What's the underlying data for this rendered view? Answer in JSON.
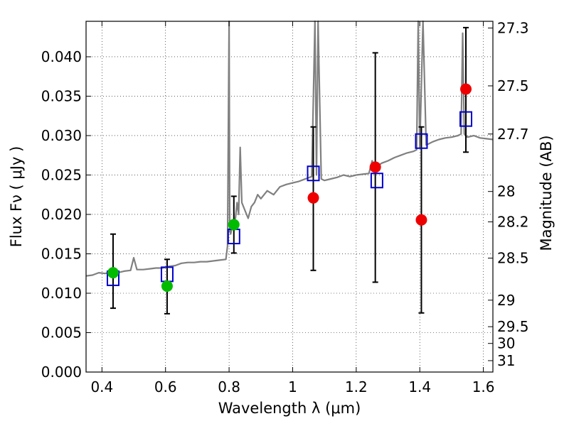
{
  "chart_data": {
    "type": "scatter",
    "xlabel": "Wavelength  λ (μm)",
    "ylabel": "Flux  Fν  ( μJy )",
    "y2label": "Magnitude (AB)",
    "xlim": [
      0.35,
      1.63
    ],
    "ylim": [
      0.0,
      0.0445
    ],
    "x_ticks": [
      0.4,
      0.6,
      0.8,
      1.0,
      1.2,
      1.4,
      1.6
    ],
    "x_tick_labels": [
      "0.4",
      "0.6",
      "0.8",
      "1",
      "1.2",
      "1.4",
      "1.6"
    ],
    "y_ticks": [
      0.0,
      0.005,
      0.01,
      0.015,
      0.02,
      0.025,
      0.03,
      0.035,
      0.04
    ],
    "y_tick_labels": [
      "0.000",
      "0.005",
      "0.010",
      "0.015",
      "0.020",
      "0.025",
      "0.030",
      "0.035",
      "0.040"
    ],
    "y2_tick_labels": [
      "27.3",
      "27.5",
      "27.7",
      "28",
      "28.2",
      "28.5",
      "29",
      "29.5",
      "30",
      "31"
    ],
    "grid": true,
    "colors": {
      "spectrum": "#808080",
      "green_points": "#00bb00",
      "red_points": "#ee0000",
      "model_squares": "#0000cc",
      "errorbars": "#000000"
    },
    "spectrum": {
      "x": [
        0.35,
        0.37,
        0.39,
        0.41,
        0.43,
        0.45,
        0.47,
        0.49,
        0.5,
        0.51,
        0.53,
        0.55,
        0.57,
        0.59,
        0.61,
        0.63,
        0.65,
        0.67,
        0.69,
        0.71,
        0.73,
        0.75,
        0.77,
        0.79,
        0.795,
        0.8,
        0.802,
        0.805,
        0.81,
        0.82,
        0.825,
        0.83,
        0.835,
        0.84,
        0.85,
        0.86,
        0.87,
        0.88,
        0.89,
        0.9,
        0.92,
        0.94,
        0.96,
        0.98,
        1.0,
        1.02,
        1.04,
        1.06,
        1.07,
        1.075,
        1.08,
        1.09,
        1.1,
        1.12,
        1.14,
        1.16,
        1.18,
        1.2,
        1.22,
        1.24,
        1.25,
        1.26,
        1.27,
        1.28,
        1.3,
        1.32,
        1.34,
        1.36,
        1.38,
        1.39,
        1.395,
        1.4,
        1.41,
        1.42,
        1.43,
        1.44,
        1.46,
        1.48,
        1.5,
        1.52,
        1.53,
        1.535,
        1.54,
        1.55,
        1.57,
        1.59,
        1.61,
        1.63
      ],
      "y": [
        0.0122,
        0.0123,
        0.0126,
        0.0125,
        0.0127,
        0.0126,
        0.0128,
        0.0129,
        0.0145,
        0.013,
        0.013,
        0.0131,
        0.0132,
        0.0132,
        0.0134,
        0.0135,
        0.0138,
        0.0139,
        0.0139,
        0.014,
        0.014,
        0.0141,
        0.0142,
        0.0143,
        0.016,
        0.0445,
        0.018,
        0.0175,
        0.0185,
        0.0195,
        0.0215,
        0.02,
        0.0285,
        0.0215,
        0.0205,
        0.0195,
        0.021,
        0.0215,
        0.0225,
        0.022,
        0.023,
        0.0225,
        0.0235,
        0.0238,
        0.024,
        0.0242,
        0.0245,
        0.0248,
        0.0445,
        0.025,
        0.0445,
        0.0245,
        0.0243,
        0.0245,
        0.0247,
        0.025,
        0.0248,
        0.025,
        0.0251,
        0.0252,
        0.0268,
        0.0258,
        0.0262,
        0.0265,
        0.0268,
        0.0272,
        0.0275,
        0.0278,
        0.028,
        0.0282,
        0.0445,
        0.0285,
        0.0445,
        0.0288,
        0.029,
        0.0292,
        0.0295,
        0.0297,
        0.0298,
        0.03,
        0.0302,
        0.043,
        0.0302,
        0.0298,
        0.03,
        0.0297,
        0.0296,
        0.0295
      ]
    },
    "model_squares": {
      "x": [
        0.435,
        0.605,
        0.815,
        1.065,
        1.265,
        1.405,
        1.545
      ],
      "y": [
        0.0119,
        0.0124,
        0.0172,
        0.0252,
        0.0243,
        0.0293,
        0.0321
      ]
    },
    "green_points": {
      "x": [
        0.435,
        0.605,
        0.815
      ],
      "y": [
        0.0126,
        0.0109,
        0.0187
      ],
      "yerr_low": [
        0.0081,
        0.0074,
        0.0151
      ],
      "yerr_high": [
        0.0175,
        0.0143,
        0.0223
      ]
    },
    "red_points": {
      "x": [
        1.065,
        1.26,
        1.405,
        1.545
      ],
      "y": [
        0.0221,
        0.026,
        0.0193,
        0.0359
      ],
      "yerr_low": [
        0.0129,
        0.0114,
        0.0075,
        0.0279
      ],
      "yerr_high": [
        0.0311,
        0.0405,
        0.0311,
        0.0437
      ]
    }
  }
}
